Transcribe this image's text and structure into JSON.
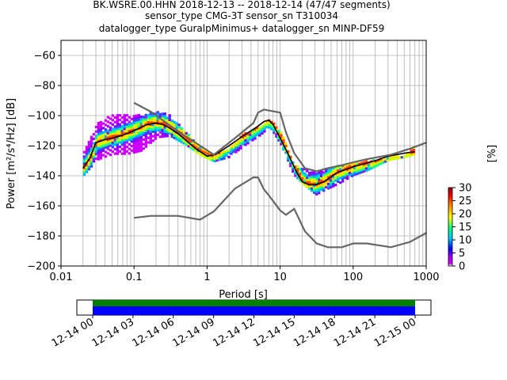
{
  "chart_data": {
    "type": "heatmap",
    "title_lines": [
      "BK.WSRE.00.HHN   2018-12-13 -- 2018-12-14  (47/47 segments)",
      "sensor_type CMG-3T sensor_sn T310034",
      "datalogger_type GuralpMinimus+ datalogger_sn MINP-DF59"
    ],
    "xlabel": "Period [s]",
    "ylabel": "Power [m²/s⁴/Hz] [dB]",
    "x_scale": "log",
    "xlim": [
      0.01,
      1000
    ],
    "ylim": [
      -200,
      -50
    ],
    "grid": true,
    "x_ticks": [
      {
        "value": 0.01,
        "label": "0.01"
      },
      {
        "value": 0.1,
        "label": "0.1"
      },
      {
        "value": 1,
        "label": "1"
      },
      {
        "value": 10,
        "label": "10"
      },
      {
        "value": 100,
        "label": "100"
      },
      {
        "value": 1000,
        "label": "1000"
      }
    ],
    "y_ticks": [
      {
        "value": -60,
        "label": "−60"
      },
      {
        "value": -80,
        "label": "−80"
      },
      {
        "value": -100,
        "label": "−100"
      },
      {
        "value": -120,
        "label": "−120"
      },
      {
        "value": -140,
        "label": "−140"
      },
      {
        "value": -160,
        "label": "−160"
      },
      {
        "value": -180,
        "label": "−180"
      },
      {
        "value": -200,
        "label": "−200"
      }
    ],
    "colorbar": {
      "label": "[%]",
      "range": [
        0,
        30
      ],
      "ticks": [
        {
          "value": 0,
          "label": "0"
        },
        {
          "value": 5,
          "label": "5"
        },
        {
          "value": 10,
          "label": "10"
        },
        {
          "value": 15,
          "label": "15"
        },
        {
          "value": 20,
          "label": "20"
        },
        {
          "value": 25,
          "label": "25"
        },
        {
          "value": 30,
          "label": "30"
        }
      ]
    },
    "band": {
      "period": [
        0.02,
        0.03,
        0.05,
        0.08,
        0.12,
        0.2,
        0.3,
        0.5,
        0.8,
        1.2,
        2,
        3,
        5,
        7,
        10,
        15,
        20,
        30,
        40,
        60,
        100,
        150,
        200,
        300,
        500,
        700
      ],
      "upper": [
        -125,
        -105,
        -100,
        -100,
        -100,
        -98,
        -100,
        -112,
        -122,
        -127,
        -122,
        -113,
        -108,
        -103,
        -112,
        -133,
        -136,
        -138,
        -136,
        -134,
        -132,
        -131,
        -130,
        -128,
        -127,
        -120
      ],
      "lower": [
        -140,
        -130,
        -126,
        -126,
        -124,
        -115,
        -114,
        -120,
        -127,
        -131,
        -128,
        -121,
        -114,
        -108,
        -120,
        -140,
        -146,
        -153,
        -150,
        -146,
        -140,
        -137,
        -134,
        -130,
        -128,
        -126
      ]
    },
    "series": [
      {
        "kind": "mode",
        "color": "#000000",
        "x": [
          0.02,
          0.025,
          0.03,
          0.04,
          0.05,
          0.07,
          0.1,
          0.15,
          0.2,
          0.25,
          0.3,
          0.4,
          0.5,
          0.7,
          1,
          1.3,
          2,
          3,
          5,
          6,
          7,
          8,
          10,
          13,
          17,
          20,
          25,
          30,
          40,
          60,
          100,
          200,
          300,
          500,
          700
        ],
        "y": [
          -135,
          -128,
          -118,
          -116,
          -115,
          -113,
          -110,
          -106,
          -105,
          -106,
          -108,
          -112,
          -116,
          -122,
          -127,
          -126,
          -120,
          -114,
          -107,
          -104,
          -103,
          -106,
          -115,
          -126,
          -138,
          -144,
          -146,
          -146,
          -144,
          -138,
          -134,
          -130,
          -127,
          -125,
          -124
        ]
      },
      {
        "kind": "nhnm",
        "color": "#666666",
        "x": [
          0.1,
          0.17,
          0.4,
          0.8,
          1.24,
          2.4,
          4.3,
          5,
          6,
          10,
          12,
          15.6,
          21.9,
          31.6,
          45,
          70,
          101,
          154,
          328,
          600,
          1000
        ],
        "y": [
          -91.5,
          -97.4,
          -110.5,
          -120,
          -126,
          -115,
          -105,
          -98,
          -96,
          -98,
          -111,
          -125,
          -135,
          -137,
          -135,
          -133,
          -131,
          -129,
          -126,
          -122,
          -118
        ]
      },
      {
        "kind": "nlnm",
        "color": "#666666",
        "x": [
          0.1,
          0.17,
          0.4,
          0.8,
          1.24,
          2.4,
          4.3,
          5,
          6,
          7,
          10,
          12,
          15.6,
          21.9,
          31.6,
          45,
          70,
          101,
          154,
          328,
          600,
          1000
        ],
        "y": [
          -168,
          -166.7,
          -166.7,
          -169.2,
          -163.7,
          -148.6,
          -141.1,
          -141.1,
          -149,
          -153,
          -163,
          -166,
          -162,
          -177,
          -185,
          -187.5,
          -187.5,
          -185,
          -185,
          -187.5,
          -184,
          -178
        ]
      }
    ]
  },
  "time_axis": {
    "ticks": [
      "12-14 00",
      "12-14 03",
      "12-14 06",
      "12-14 09",
      "12-14 12",
      "12-14 15",
      "12-14 18",
      "12-14 21",
      "12-15 00"
    ],
    "coverage": [
      {
        "name": "data",
        "color": "#0000ff"
      },
      {
        "name": "gaps",
        "color": "#008000"
      }
    ]
  }
}
